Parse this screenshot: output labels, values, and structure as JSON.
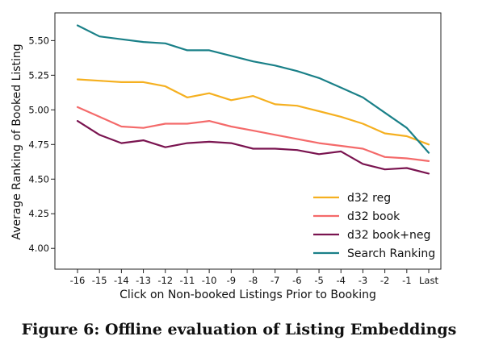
{
  "caption": "Figure 6: Offline evaluation of Listing Embeddings",
  "chart_data": {
    "type": "line",
    "xlabel": "Click on Non-booked Listings Prior to Booking",
    "ylabel": "Average Ranking of Booked Listing",
    "categories": [
      "-16",
      "-15",
      "-14",
      "-13",
      "-12",
      "-11",
      "-10",
      "-9",
      "-8",
      "-7",
      "-6",
      "-5",
      "-4",
      "-3",
      "-2",
      "-1",
      "Last"
    ],
    "yticks": [
      4.0,
      4.25,
      4.5,
      4.75,
      5.0,
      5.25,
      5.5
    ],
    "ylim": [
      3.85,
      5.7
    ],
    "grid": false,
    "legend_position": "lower-right",
    "series": [
      {
        "name": "d32 reg",
        "color": "#f5b020",
        "values": [
          5.22,
          5.21,
          5.2,
          5.2,
          5.17,
          5.09,
          5.12,
          5.07,
          5.1,
          5.04,
          5.03,
          4.99,
          4.95,
          4.9,
          4.83,
          4.81,
          4.75
        ]
      },
      {
        "name": "d32 book",
        "color": "#f46a6a",
        "values": [
          5.02,
          4.95,
          4.88,
          4.87,
          4.9,
          4.9,
          4.92,
          4.88,
          4.85,
          4.82,
          4.79,
          4.76,
          4.74,
          4.72,
          4.66,
          4.65,
          4.63
        ]
      },
      {
        "name": "d32 book+neg",
        "color": "#7a1450",
        "values": [
          4.92,
          4.82,
          4.76,
          4.78,
          4.73,
          4.76,
          4.77,
          4.76,
          4.72,
          4.72,
          4.71,
          4.68,
          4.7,
          4.61,
          4.57,
          4.58,
          4.54
        ]
      },
      {
        "name": "Search Ranking",
        "color": "#1a8088",
        "values": [
          5.61,
          5.53,
          5.51,
          5.49,
          5.48,
          5.43,
          5.43,
          5.39,
          5.35,
          5.32,
          5.28,
          5.23,
          5.16,
          5.09,
          4.98,
          4.87,
          4.69
        ]
      }
    ]
  }
}
